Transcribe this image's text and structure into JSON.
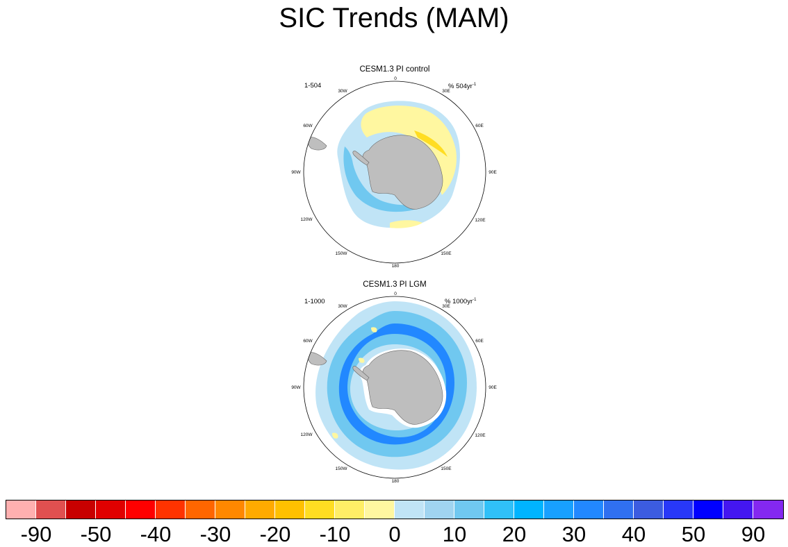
{
  "figure": {
    "title": "SIC Trends (MAM)",
    "panels": [
      {
        "title": "CESM1.3 PI control",
        "left_label": "1-504",
        "right_label_prefix": "% 504yr",
        "right_label_exponent": "-1",
        "lon_labels": [
          "0",
          "30E",
          "60E",
          "90E",
          "120E",
          "150E",
          "180",
          "150W",
          "120W",
          "90W",
          "60W",
          "30W"
        ]
      },
      {
        "title": "CESM1.3 PI LGM",
        "left_label": "1-1000",
        "right_label_prefix": "% 1000yr",
        "right_label_exponent": "-1",
        "lon_labels": [
          "0",
          "30E",
          "60E",
          "90E",
          "120E",
          "150E",
          "180",
          "150W",
          "120W",
          "90W",
          "60W",
          "30W"
        ]
      }
    ]
  },
  "colorbar": {
    "colors": [
      "#ffb0b0",
      "#e05050",
      "#c80000",
      "#e00000",
      "#ff0000",
      "#ff3300",
      "#ff6600",
      "#ff8800",
      "#ffaa00",
      "#ffc000",
      "#ffdd22",
      "#ffee66",
      "#fff7a0",
      "#c0e4f6",
      "#a0d4f0",
      "#70c8f0",
      "#30c0f8",
      "#00b4ff",
      "#18a0ff",
      "#2288ff",
      "#3070f0",
      "#3c5ce0",
      "#2838f8",
      "#0000ff",
      "#4416f0",
      "#8428f0"
    ],
    "tick_labels": [
      "-90",
      "-50",
      "-40",
      "-30",
      "-20",
      "-10",
      "0",
      "10",
      "20",
      "30",
      "40",
      "50",
      "90"
    ]
  },
  "colors": {
    "land": "#bebebe",
    "positive_light": "#c0e4f6",
    "negative_light": "#fff7a0"
  }
}
